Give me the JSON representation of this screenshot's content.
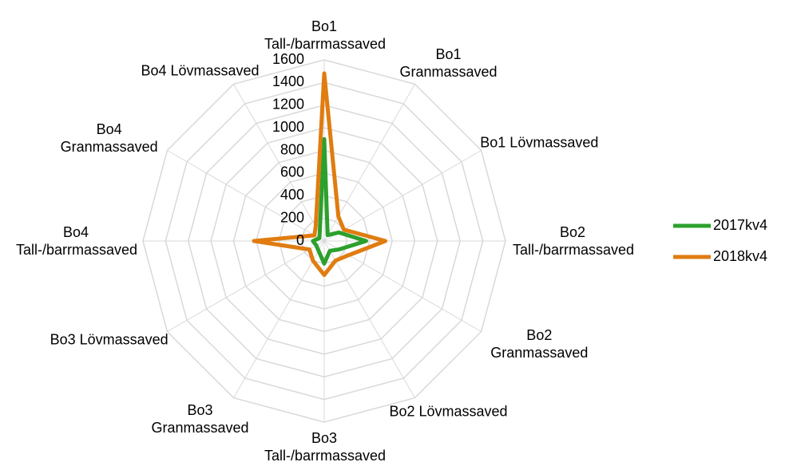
{
  "chart_data": {
    "type": "radar",
    "categories": [
      "Bo1 Tall-/barrmassaved",
      "Bo1 Granmassaved",
      "Bo1 Lövmassaved",
      "Bo2 Tall-/barrmassaved",
      "Bo2 Granmassaved",
      "Bo2 Lövmassaved",
      "Bo3 Tall-/barrmassaved",
      "Bo3 Granmassaved",
      "Bo3 Lövmassaved",
      "Bo4 Tall-/barrmassaved",
      "Bo4 Granmassaved",
      "Bo4 Lövmassaved"
    ],
    "series": [
      {
        "name": "2017kv4",
        "color": "#2ca02c",
        "values": [
          900,
          60,
          150,
          370,
          150,
          100,
          200,
          100,
          80,
          100,
          50,
          80
        ]
      },
      {
        "name": "2018kv4",
        "color": "#e07c10",
        "values": [
          1480,
          250,
          200,
          540,
          250,
          200,
          300,
          200,
          150,
          620,
          100,
          150
        ]
      }
    ],
    "ylim": [
      0,
      1600
    ],
    "yticks": [
      0,
      200,
      400,
      600,
      800,
      1000,
      1200,
      1400,
      1600
    ],
    "grid": true,
    "legend": "right"
  }
}
